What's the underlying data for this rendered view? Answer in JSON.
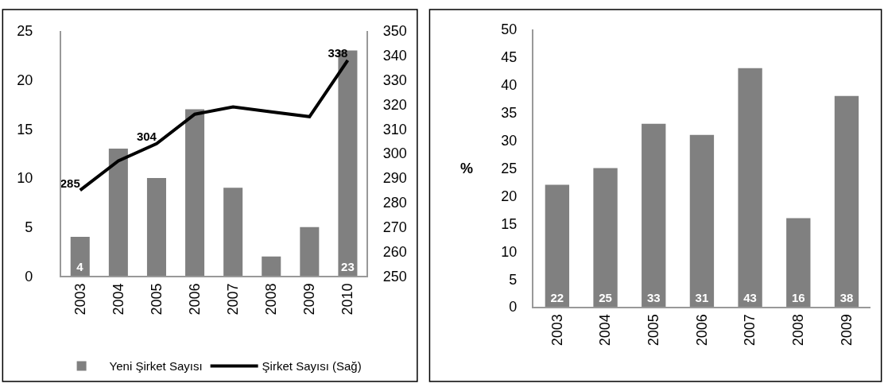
{
  "chart_data": [
    {
      "type": "bar",
      "categories": [
        "2003",
        "2004",
        "2005",
        "2006",
        "2007",
        "2008",
        "2009",
        "2010"
      ],
      "series": [
        {
          "name": "Yeni Şirket Sayısı",
          "type": "bar",
          "color": "#808080",
          "values": [
            4,
            13,
            10,
            17,
            9,
            2,
            5,
            23
          ],
          "value_labels": [
            "4",
            null,
            null,
            null,
            null,
            null,
            null,
            "23"
          ]
        },
        {
          "name": "Şirket Sayısı (Sağ)",
          "type": "line",
          "axis": "y2",
          "color": "#000000",
          "values": [
            285,
            297,
            304,
            316,
            319,
            317,
            315,
            338
          ],
          "value_labels": [
            "285",
            null,
            "304",
            null,
            null,
            null,
            null,
            "338"
          ]
        }
      ],
      "ylim": [
        0,
        25
      ],
      "yticks": [
        0,
        5,
        10,
        15,
        20,
        25
      ],
      "y2lim": [
        250,
        350
      ],
      "y2ticks": [
        250,
        260,
        270,
        280,
        290,
        300,
        310,
        320,
        330,
        340,
        350
      ],
      "legend": "bottom",
      "grid": false,
      "marker": "none"
    },
    {
      "type": "bar",
      "categories": [
        "2003",
        "2004",
        "2005",
        "2006",
        "2007",
        "2008",
        "2009"
      ],
      "values": [
        22,
        25,
        33,
        31,
        43,
        16,
        38
      ],
      "color": "#808080",
      "ylabel": "%",
      "ylim": [
        0,
        50
      ],
      "yticks": [
        0,
        5,
        10,
        15,
        20,
        25,
        30,
        35,
        40,
        45,
        50
      ],
      "data_labels": true,
      "grid": false,
      "legend": false
    }
  ]
}
